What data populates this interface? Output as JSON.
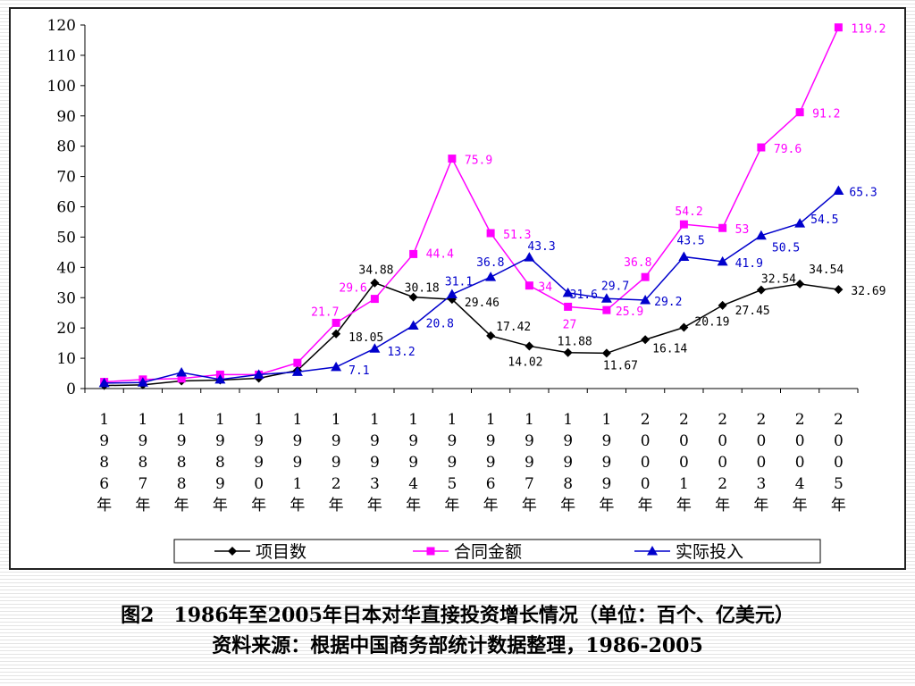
{
  "chart_data": {
    "type": "line",
    "categories": [
      "1986年",
      "1987年",
      "1988年",
      "1989年",
      "1990年",
      "1991年",
      "1992年",
      "1993年",
      "1994年",
      "1995年",
      "1996年",
      "1997年",
      "1998年",
      "1999年",
      "2000年",
      "2001年",
      "2002年",
      "2003年",
      "2004年",
      "2005年"
    ],
    "ylim": [
      0,
      120
    ],
    "yticks": [
      0,
      10,
      20,
      30,
      40,
      50,
      60,
      70,
      80,
      90,
      100,
      110,
      120
    ],
    "grid": false,
    "legend_position": "bottom",
    "series": [
      {
        "name": "项目数",
        "color": "#000000",
        "marker": "diamond",
        "values": [
          1.0,
          1.2,
          2.5,
          2.8,
          3.4,
          6.0,
          18.05,
          34.88,
          30.18,
          29.46,
          17.42,
          14.02,
          11.88,
          11.67,
          16.14,
          20.19,
          27.45,
          32.54,
          34.54,
          32.69
        ],
        "labels": [
          "",
          "",
          "",
          "",
          "",
          "",
          "18.05",
          "34.88",
          "30.18",
          "29.46",
          "17.42",
          "14.02",
          "11.88",
          "11.67",
          "16.14",
          "20.19",
          "27.45",
          "32.54",
          "34.54",
          "32.69"
        ]
      },
      {
        "name": "合同金额",
        "color": "#ff00ff",
        "marker": "square",
        "values": [
          2.2,
          3.0,
          3.3,
          4.6,
          4.6,
          8.5,
          21.7,
          29.6,
          44.4,
          75.9,
          51.3,
          34,
          27,
          25.9,
          36.8,
          54.2,
          53,
          79.6,
          91.2,
          119.2
        ],
        "labels": [
          "",
          "",
          "",
          "",
          "",
          "",
          "21.7",
          "29.6",
          "44.4",
          "75.9",
          "51.3",
          "34",
          "27",
          "25.9",
          "36.8",
          "54.2",
          "53",
          "79.6",
          "91.2",
          "119.2"
        ]
      },
      {
        "name": "实际投入",
        "color": "#0000cc",
        "marker": "triangle",
        "values": [
          1.8,
          2.0,
          5.3,
          3.0,
          4.6,
          5.5,
          7.1,
          13.2,
          20.8,
          31.1,
          36.8,
          43.3,
          31.6,
          29.7,
          29.2,
          43.5,
          41.9,
          50.5,
          54.5,
          65.3
        ],
        "labels": [
          "",
          "",
          "",
          "",
          "",
          "",
          "7.1",
          "13.2",
          "20.8",
          "31.1",
          "36.8",
          "43.3",
          "31.6",
          "29.7",
          "29.2",
          "43.5",
          "41.9",
          "50.5",
          "54.5",
          "65.3"
        ]
      }
    ]
  },
  "caption": {
    "line1": "图2　1986年至2005年日本对华直接投资增长情况（单位：百个、亿美元）",
    "line2": "资料来源：根据中国商务部统计数据整理，1986-2005"
  }
}
